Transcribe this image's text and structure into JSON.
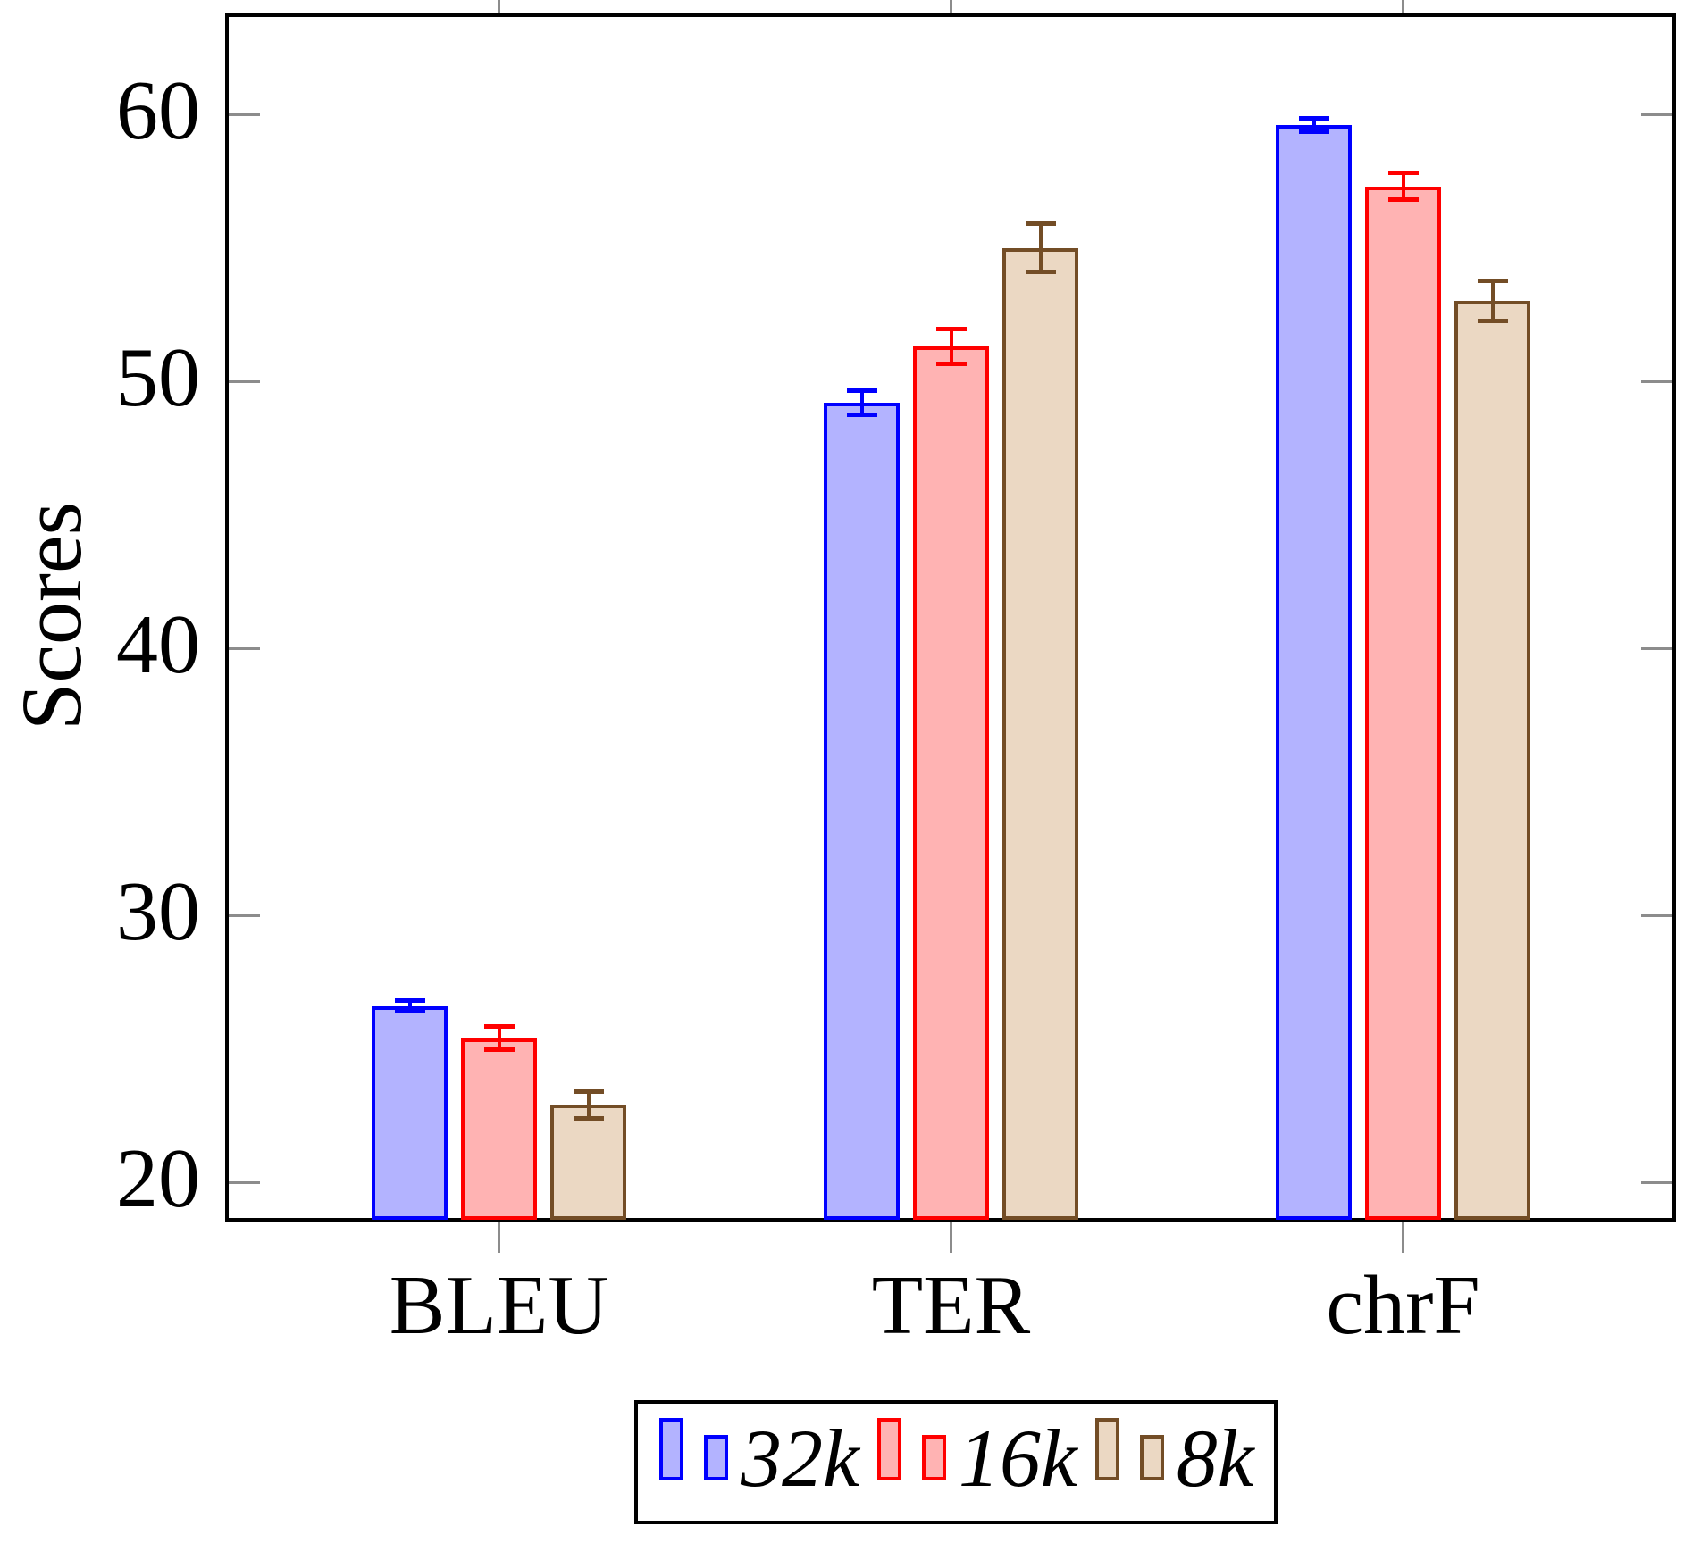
{
  "figure": {
    "ylabel": "Scores"
  },
  "chart_data": {
    "type": "bar",
    "title": "",
    "xlabel": "",
    "ylabel": "Scores",
    "categories": [
      "BLEU",
      "TER",
      "chrF"
    ],
    "series": [
      {
        "name": "32k",
        "values": [
          26.6,
          49.2,
          59.6
        ],
        "errors": [
          0.2,
          0.45,
          0.25
        ],
        "fill": "#b3b3ff",
        "stroke": "#0000ff"
      },
      {
        "name": "16k",
        "values": [
          25.4,
          51.3,
          57.3
        ],
        "errors": [
          0.45,
          0.65,
          0.5
        ],
        "fill": "#ffb3b3",
        "stroke": "#ff0000"
      },
      {
        "name": "8k",
        "values": [
          22.9,
          55.0,
          53.0
        ],
        "errors": [
          0.5,
          0.9,
          0.75
        ],
        "fill": "#ebd8c3",
        "stroke": "#734d26"
      }
    ],
    "yticks": [
      20,
      30,
      40,
      50,
      60
    ],
    "ylim": [
      18.7,
      63.7
    ],
    "grid": false,
    "error_bars": true,
    "legend_position": "below"
  },
  "colors": {
    "axis": "#000000",
    "tick": "#8c8c8c",
    "background": "#ffffff",
    "text": "#000000"
  }
}
